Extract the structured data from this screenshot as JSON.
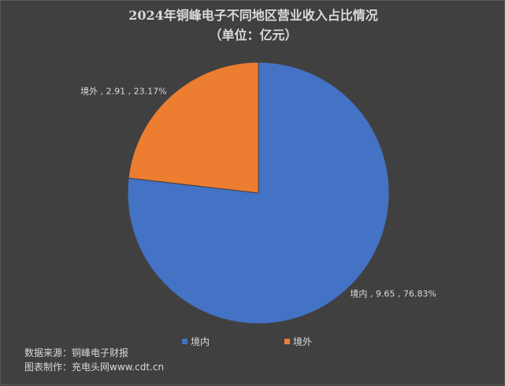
{
  "chart_data": {
    "type": "pie",
    "title": "2024年铜峰电子不同地区营业收入占比情况",
    "subtitle": "（单位：亿元）",
    "slices": [
      {
        "name": "境内",
        "value": 9.65,
        "percent": "76.83%",
        "label": "境内 , 9.65 , 76.83%",
        "color": "#4472c4"
      },
      {
        "name": "境外",
        "value": 2.91,
        "percent": "23.17%",
        "label": "境外 , 2.91 , 23.17%",
        "color": "#ed7d31"
      }
    ],
    "legend": {
      "placement": "bottom",
      "items": [
        "境内",
        "境外"
      ]
    }
  },
  "footer": {
    "source": "数据来源：铜峰电子财报",
    "credit": "图表制作：充电头网www.cdt.cn"
  },
  "background_color": "#404040"
}
